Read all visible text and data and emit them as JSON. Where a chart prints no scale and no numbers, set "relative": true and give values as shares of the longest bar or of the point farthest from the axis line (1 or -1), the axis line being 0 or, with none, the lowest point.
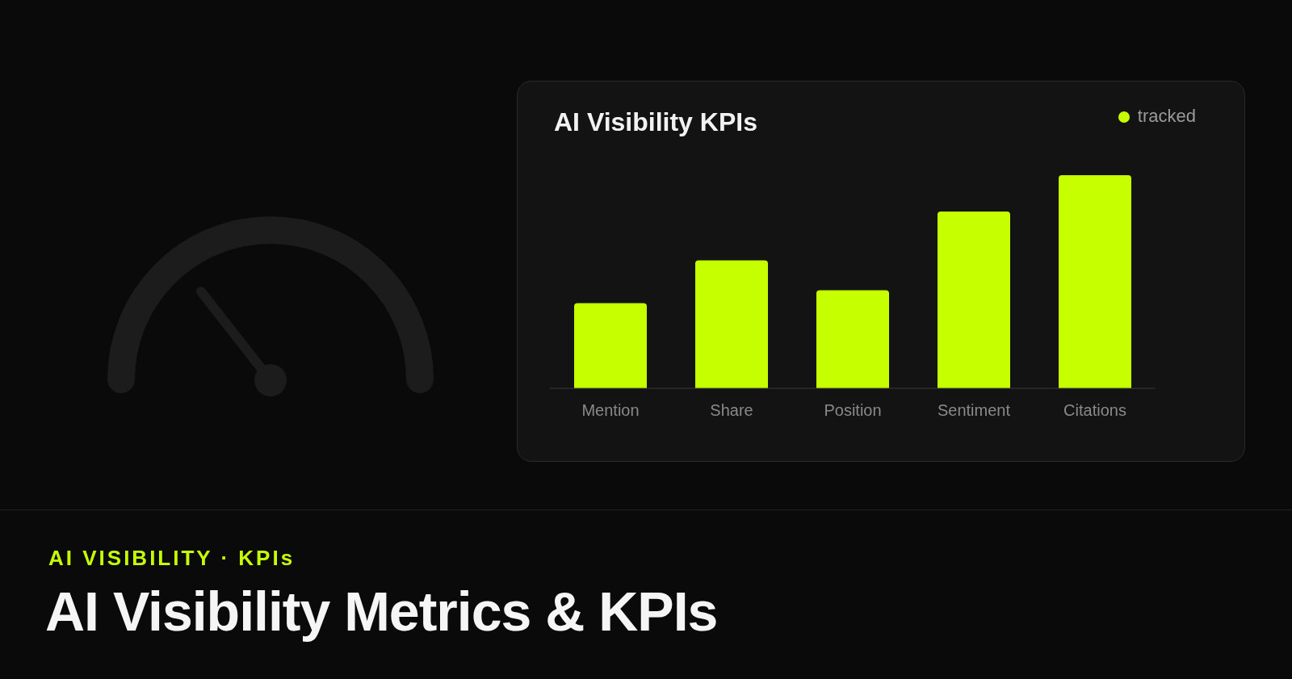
{
  "chart_data": {
    "type": "bar",
    "title": "AI Visibility KPIs",
    "categories": [
      "Mention",
      "Share",
      "Position",
      "Sentiment",
      "Citations"
    ],
    "series": [
      {
        "name": "tracked",
        "color": "#c6ff00",
        "values": [
          0.4,
          0.6,
          0.46,
          0.83,
          1
        ]
      }
    ],
    "relative": true,
    "legend": "top right",
    "annotations": [
      "AI VISIBILITY · KPIs",
      "AI Visibility Metrics & KPIs"
    ]
  }
}
